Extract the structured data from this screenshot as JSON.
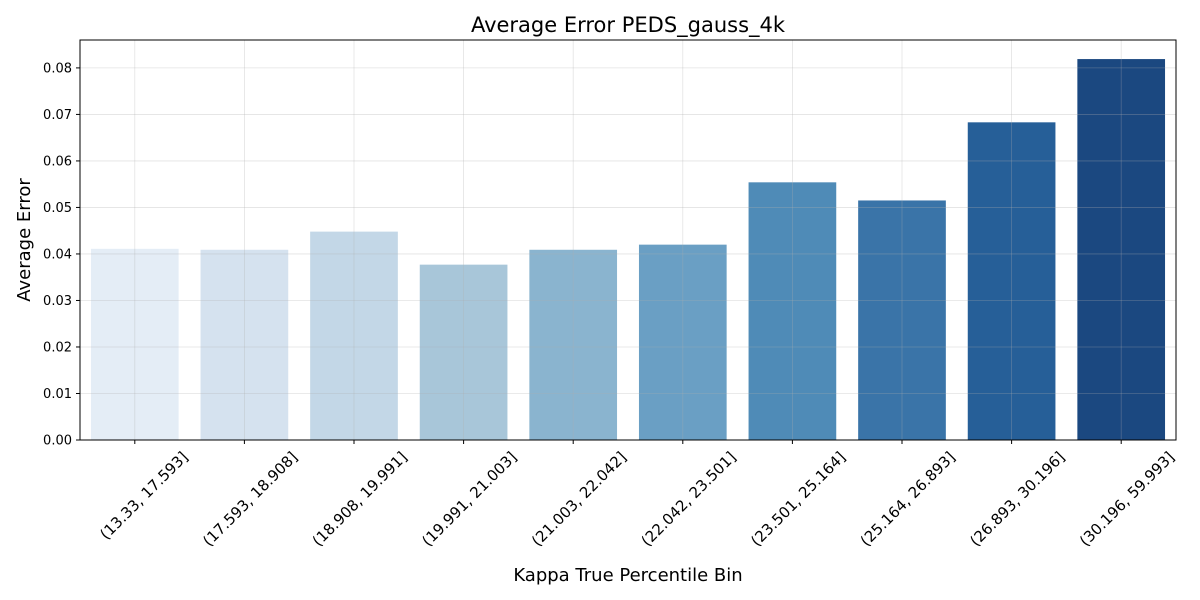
{
  "chart_data": {
    "type": "bar",
    "title": "Average Error PEDS_gauss_4k",
    "xlabel": "Kappa True Percentile Bin",
    "ylabel": "Average Error",
    "categories": [
      "(13.33, 17.593]",
      "(17.593, 18.908]",
      "(18.908, 19.991]",
      "(19.991, 21.003]",
      "(21.003, 22.042]",
      "(22.042, 23.501]",
      "(23.501, 25.164]",
      "(25.164, 26.893]",
      "(26.893, 30.196]",
      "(30.196, 59.993]"
    ],
    "values": [
      0.0411,
      0.0409,
      0.0448,
      0.0377,
      0.0409,
      0.042,
      0.0554,
      0.0515,
      0.0683,
      0.0819
    ],
    "colors": [
      "#e4edf6",
      "#d5e2ef",
      "#c3d7e7",
      "#a8c6d9",
      "#8ab4cf",
      "#6a9fc4",
      "#4f8bb7",
      "#3a74a8",
      "#265f98",
      "#1b4880"
    ],
    "ylim": [
      0,
      0.086
    ],
    "yticks": [
      0.0,
      0.01,
      0.02,
      0.03,
      0.04,
      0.05,
      0.06,
      0.07,
      0.08
    ],
    "ytick_labels": [
      "0.00",
      "0.01",
      "0.02",
      "0.03",
      "0.04",
      "0.05",
      "0.06",
      "0.07",
      "0.08"
    ],
    "grid": true
  }
}
